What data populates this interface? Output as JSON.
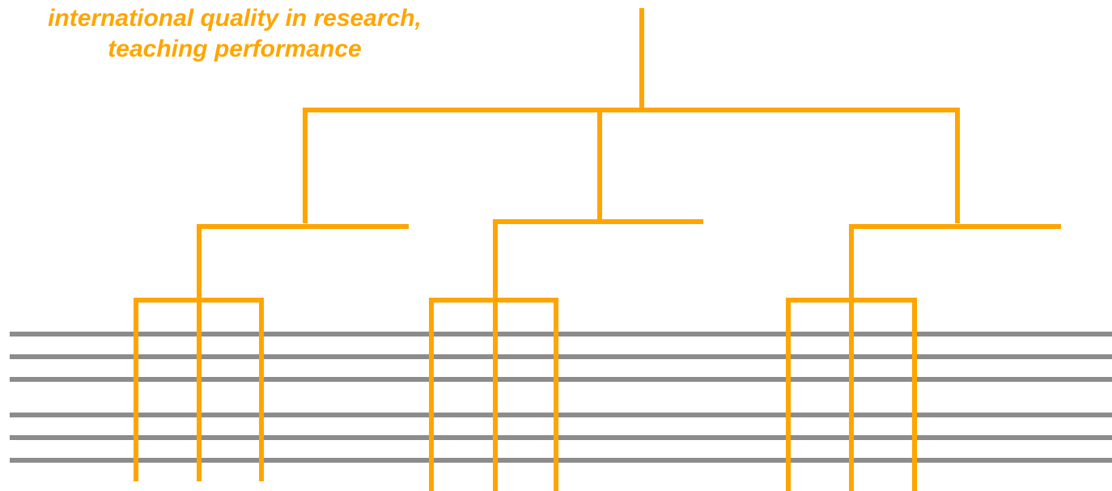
{
  "caption": {
    "line1": "international quality in research,",
    "line2": "teaching performance"
  },
  "colors": {
    "tree": "#ffa500",
    "bands": "#8c8c8c",
    "background": "#ffffff"
  }
}
